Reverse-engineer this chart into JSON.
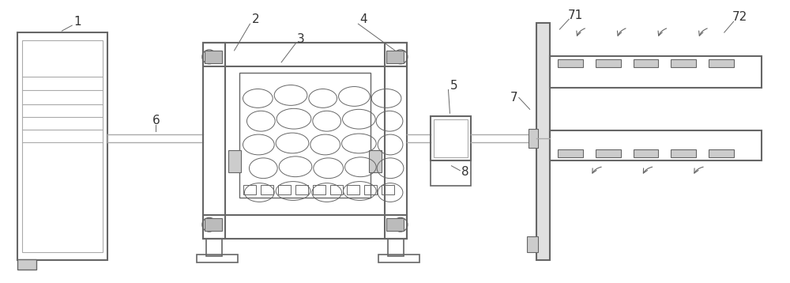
{
  "bg_color": "#ffffff",
  "lc": "#aaaaaa",
  "dc": "#666666",
  "tc": "#333333",
  "figsize": [
    10.0,
    3.58
  ],
  "dpi": 100
}
